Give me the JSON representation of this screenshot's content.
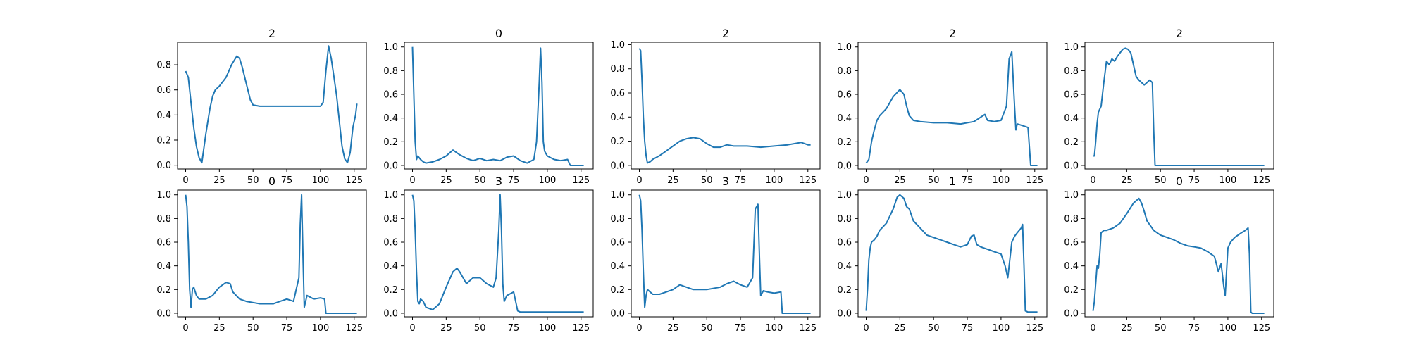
{
  "figure": {
    "series_color": "#1f77b4"
  },
  "chart_data": [
    {
      "type": "line",
      "title": "2",
      "xlim": [
        -6,
        134
      ],
      "ylim": [
        -0.03,
        0.98
      ],
      "x_ticks": [
        0,
        25,
        50,
        75,
        100,
        125
      ],
      "y_ticks": [
        0.0,
        0.2,
        0.4,
        0.6,
        0.8
      ],
      "series": [
        {
          "x": [
            0,
            2,
            4,
            6,
            8,
            10,
            12,
            15,
            18,
            20,
            22,
            25,
            30,
            34,
            38,
            40,
            42,
            45,
            48,
            50,
            55,
            60,
            70,
            80,
            90,
            100,
            102,
            104,
            106,
            108,
            110,
            112,
            114,
            116,
            118,
            120,
            122,
            124,
            126,
            127
          ],
          "y": [
            0.75,
            0.7,
            0.5,
            0.3,
            0.15,
            0.06,
            0.02,
            0.25,
            0.45,
            0.55,
            0.6,
            0.63,
            0.7,
            0.8,
            0.87,
            0.85,
            0.78,
            0.65,
            0.52,
            0.48,
            0.47,
            0.47,
            0.47,
            0.47,
            0.47,
            0.47,
            0.5,
            0.75,
            0.95,
            0.85,
            0.7,
            0.55,
            0.35,
            0.15,
            0.05,
            0.02,
            0.1,
            0.3,
            0.4,
            0.49
          ]
        }
      ]
    },
    {
      "type": "line",
      "title": "0",
      "xlim": [
        -6,
        134
      ],
      "ylim": [
        -0.03,
        1.04
      ],
      "x_ticks": [
        0,
        25,
        50,
        75,
        100,
        125
      ],
      "y_ticks": [
        0.0,
        0.2,
        0.4,
        0.6,
        0.8,
        1.0
      ],
      "series": [
        {
          "x": [
            0,
            1,
            2,
            3,
            4,
            6,
            8,
            10,
            15,
            20,
            25,
            30,
            35,
            40,
            45,
            50,
            55,
            60,
            65,
            70,
            75,
            80,
            85,
            90,
            92,
            94,
            95,
            96,
            97,
            98,
            100,
            105,
            110,
            115,
            117,
            120,
            125,
            127
          ],
          "y": [
            1.0,
            0.6,
            0.2,
            0.05,
            0.08,
            0.05,
            0.03,
            0.02,
            0.03,
            0.05,
            0.08,
            0.13,
            0.09,
            0.06,
            0.04,
            0.06,
            0.04,
            0.05,
            0.04,
            0.07,
            0.08,
            0.04,
            0.02,
            0.05,
            0.2,
            0.7,
            0.99,
            0.7,
            0.2,
            0.12,
            0.08,
            0.05,
            0.04,
            0.05,
            0.0,
            0.0,
            0.0,
            0.0
          ]
        }
      ]
    },
    {
      "type": "line",
      "title": "2",
      "xlim": [
        -6,
        134
      ],
      "ylim": [
        -0.03,
        1.02
      ],
      "x_ticks": [
        0,
        25,
        50,
        75,
        100,
        125
      ],
      "y_ticks": [
        0.0,
        0.2,
        0.4,
        0.6,
        0.8,
        1.0
      ],
      "series": [
        {
          "x": [
            0,
            1,
            2,
            3,
            4,
            5,
            6,
            8,
            10,
            15,
            20,
            25,
            30,
            35,
            40,
            45,
            50,
            55,
            60,
            65,
            70,
            80,
            90,
            100,
            110,
            115,
            120,
            125,
            127
          ],
          "y": [
            0.97,
            0.95,
            0.7,
            0.4,
            0.2,
            0.08,
            0.02,
            0.03,
            0.05,
            0.08,
            0.12,
            0.16,
            0.2,
            0.22,
            0.23,
            0.22,
            0.18,
            0.15,
            0.15,
            0.17,
            0.16,
            0.16,
            0.15,
            0.16,
            0.17,
            0.18,
            0.19,
            0.17,
            0.17
          ]
        }
      ]
    },
    {
      "type": "line",
      "title": "2",
      "xlim": [
        -6,
        134
      ],
      "ylim": [
        -0.03,
        1.04
      ],
      "x_ticks": [
        0,
        25,
        50,
        75,
        100,
        125
      ],
      "y_ticks": [
        0.0,
        0.2,
        0.4,
        0.6,
        0.8,
        1.0
      ],
      "series": [
        {
          "x": [
            0,
            2,
            4,
            6,
            8,
            10,
            15,
            20,
            25,
            28,
            30,
            32,
            35,
            40,
            50,
            60,
            70,
            80,
            88,
            90,
            95,
            100,
            104,
            106,
            108,
            110,
            111,
            112,
            115,
            120,
            122,
            124,
            127
          ],
          "y": [
            0.02,
            0.05,
            0.2,
            0.3,
            0.38,
            0.42,
            0.48,
            0.58,
            0.64,
            0.6,
            0.5,
            0.42,
            0.38,
            0.37,
            0.36,
            0.36,
            0.35,
            0.37,
            0.43,
            0.38,
            0.37,
            0.38,
            0.5,
            0.9,
            0.96,
            0.5,
            0.3,
            0.35,
            0.34,
            0.32,
            0.0,
            0.0,
            0.0
          ]
        }
      ]
    },
    {
      "type": "line",
      "title": "2",
      "xlim": [
        -6,
        134
      ],
      "ylim": [
        -0.03,
        1.04
      ],
      "x_ticks": [
        0,
        25,
        50,
        75,
        100,
        125
      ],
      "y_ticks": [
        0.0,
        0.2,
        0.4,
        0.6,
        0.8,
        1.0
      ],
      "series": [
        {
          "x": [
            0,
            1,
            2,
            3,
            4,
            6,
            8,
            10,
            12,
            14,
            16,
            18,
            20,
            22,
            24,
            26,
            28,
            30,
            32,
            34,
            36,
            38,
            40,
            42,
            44,
            45,
            46,
            47,
            50,
            60,
            75,
            100,
            127
          ],
          "y": [
            0.08,
            0.08,
            0.2,
            0.35,
            0.45,
            0.5,
            0.7,
            0.88,
            0.85,
            0.9,
            0.88,
            0.92,
            0.95,
            0.98,
            0.99,
            0.98,
            0.95,
            0.85,
            0.75,
            0.72,
            0.7,
            0.68,
            0.7,
            0.72,
            0.7,
            0.3,
            0.0,
            0.0,
            0.0,
            0.0,
            0.0,
            0.0,
            0.0
          ]
        }
      ]
    },
    {
      "type": "line",
      "title": "0",
      "xlim": [
        -6,
        134
      ],
      "ylim": [
        -0.03,
        1.04
      ],
      "x_ticks": [
        0,
        25,
        50,
        75,
        100,
        125
      ],
      "y_ticks": [
        0.0,
        0.2,
        0.4,
        0.6,
        0.8,
        1.0
      ],
      "series": [
        {
          "x": [
            0,
            1,
            2,
            3,
            4,
            5,
            6,
            8,
            10,
            15,
            20,
            25,
            30,
            33,
            35,
            40,
            45,
            50,
            55,
            60,
            65,
            70,
            75,
            80,
            84,
            85,
            86,
            87,
            88,
            90,
            95,
            100,
            103,
            104,
            110,
            120,
            127
          ],
          "y": [
            1.0,
            0.9,
            0.6,
            0.2,
            0.05,
            0.2,
            0.22,
            0.15,
            0.12,
            0.12,
            0.15,
            0.22,
            0.26,
            0.25,
            0.18,
            0.12,
            0.1,
            0.09,
            0.08,
            0.08,
            0.08,
            0.1,
            0.12,
            0.1,
            0.3,
            0.75,
            1.0,
            0.5,
            0.05,
            0.15,
            0.12,
            0.13,
            0.12,
            0.0,
            0.0,
            0.0,
            0.0
          ]
        }
      ]
    },
    {
      "type": "line",
      "title": "3",
      "xlim": [
        -6,
        134
      ],
      "ylim": [
        -0.03,
        1.04
      ],
      "x_ticks": [
        0,
        25,
        50,
        75,
        100,
        125
      ],
      "y_ticks": [
        0.0,
        0.2,
        0.4,
        0.6,
        0.8,
        1.0
      ],
      "series": [
        {
          "x": [
            0,
            1,
            2,
            3,
            4,
            5,
            6,
            8,
            10,
            15,
            20,
            25,
            30,
            33,
            35,
            40,
            45,
            50,
            55,
            60,
            62,
            64,
            65,
            66,
            67,
            68,
            70,
            75,
            78,
            80,
            90,
            100,
            110,
            120,
            127
          ],
          "y": [
            1.0,
            0.95,
            0.7,
            0.35,
            0.1,
            0.08,
            0.12,
            0.1,
            0.05,
            0.03,
            0.08,
            0.22,
            0.35,
            0.38,
            0.35,
            0.25,
            0.3,
            0.3,
            0.25,
            0.22,
            0.3,
            0.7,
            1.0,
            0.7,
            0.25,
            0.1,
            0.15,
            0.18,
            0.02,
            0.01,
            0.01,
            0.01,
            0.01,
            0.01,
            0.01
          ]
        }
      ]
    },
    {
      "type": "line",
      "title": "3",
      "xlim": [
        -6,
        134
      ],
      "ylim": [
        -0.03,
        1.04
      ],
      "x_ticks": [
        0,
        25,
        50,
        75,
        100,
        125
      ],
      "y_ticks": [
        0.0,
        0.2,
        0.4,
        0.6,
        0.8,
        1.0
      ],
      "series": [
        {
          "x": [
            0,
            1,
            2,
            3,
            4,
            5,
            6,
            8,
            10,
            15,
            20,
            25,
            30,
            35,
            40,
            45,
            50,
            55,
            60,
            65,
            70,
            75,
            80,
            84,
            86,
            88,
            89,
            90,
            92,
            95,
            100,
            105,
            106,
            110,
            120,
            127
          ],
          "y": [
            1.0,
            0.95,
            0.7,
            0.35,
            0.05,
            0.15,
            0.2,
            0.18,
            0.16,
            0.16,
            0.18,
            0.2,
            0.24,
            0.22,
            0.2,
            0.2,
            0.2,
            0.21,
            0.22,
            0.25,
            0.27,
            0.24,
            0.22,
            0.3,
            0.88,
            0.92,
            0.5,
            0.15,
            0.19,
            0.18,
            0.17,
            0.18,
            0.0,
            0.0,
            0.0,
            0.0
          ]
        }
      ]
    },
    {
      "type": "line",
      "title": "1",
      "xlim": [
        -6,
        134
      ],
      "ylim": [
        -0.03,
        1.04
      ],
      "x_ticks": [
        0,
        25,
        50,
        75,
        100,
        125
      ],
      "y_ticks": [
        0.0,
        0.2,
        0.4,
        0.6,
        0.8,
        1.0
      ],
      "series": [
        {
          "x": [
            0,
            1,
            2,
            3,
            4,
            6,
            8,
            10,
            15,
            20,
            23,
            25,
            28,
            30,
            32,
            35,
            40,
            45,
            50,
            55,
            60,
            65,
            70,
            75,
            78,
            80,
            82,
            85,
            90,
            95,
            100,
            103,
            105,
            108,
            110,
            112,
            115,
            116,
            117,
            118,
            120,
            125,
            127
          ],
          "y": [
            0.02,
            0.2,
            0.45,
            0.55,
            0.6,
            0.62,
            0.65,
            0.7,
            0.76,
            0.88,
            0.98,
            1.0,
            0.97,
            0.9,
            0.88,
            0.78,
            0.72,
            0.66,
            0.64,
            0.62,
            0.6,
            0.58,
            0.56,
            0.58,
            0.65,
            0.66,
            0.58,
            0.56,
            0.54,
            0.52,
            0.5,
            0.4,
            0.3,
            0.6,
            0.65,
            0.68,
            0.72,
            0.75,
            0.4,
            0.02,
            0.01,
            0.01,
            0.01
          ]
        }
      ]
    },
    {
      "type": "line",
      "title": "0",
      "xlim": [
        -6,
        134
      ],
      "ylim": [
        -0.03,
        1.04
      ],
      "x_ticks": [
        0,
        25,
        50,
        75,
        100,
        125
      ],
      "y_ticks": [
        0.0,
        0.2,
        0.4,
        0.6,
        0.8,
        1.0
      ],
      "series": [
        {
          "x": [
            0,
            1,
            2,
            3,
            4,
            5,
            6,
            8,
            10,
            15,
            20,
            25,
            30,
            34,
            36,
            38,
            40,
            45,
            50,
            55,
            60,
            65,
            70,
            75,
            80,
            85,
            90,
            93,
            95,
            97,
            98,
            100,
            102,
            105,
            110,
            113,
            115,
            116,
            117,
            118,
            120,
            125,
            127
          ],
          "y": [
            0.02,
            0.1,
            0.25,
            0.4,
            0.38,
            0.5,
            0.68,
            0.7,
            0.7,
            0.72,
            0.76,
            0.84,
            0.93,
            0.97,
            0.93,
            0.86,
            0.78,
            0.7,
            0.66,
            0.64,
            0.62,
            0.59,
            0.57,
            0.56,
            0.55,
            0.52,
            0.48,
            0.35,
            0.42,
            0.22,
            0.15,
            0.55,
            0.6,
            0.64,
            0.68,
            0.7,
            0.72,
            0.5,
            0.01,
            0.0,
            0.0,
            0.0,
            0.0
          ]
        }
      ]
    }
  ]
}
